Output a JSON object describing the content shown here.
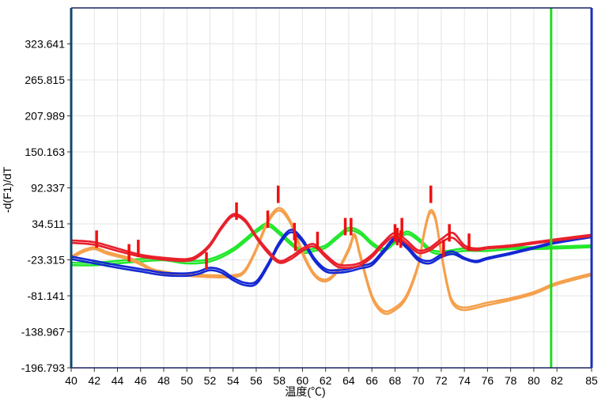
{
  "chart_data": {
    "type": "line",
    "xlabel": "温度(℃)",
    "ylabel": "-d(F1)/dT",
    "xlim": [
      40,
      85
    ],
    "ylim": [
      -196.793,
      381.467
    ],
    "x_ticks": [
      40,
      42,
      44,
      46,
      48,
      50,
      52,
      54,
      56,
      58,
      60,
      62,
      64,
      66,
      68,
      70,
      72,
      74,
      76,
      78,
      80,
      82,
      85
    ],
    "x_tick_labels": [
      "40",
      "42",
      "44",
      "46",
      "48",
      "50",
      "52",
      "54",
      "56",
      "58",
      "60",
      "62",
      "64",
      "66",
      "68",
      "70",
      "72",
      "74",
      "76",
      "78",
      "80",
      "82",
      "85"
    ],
    "y_ticks": [
      323.641,
      265.815,
      207.989,
      150.163,
      92.337,
      34.511,
      -23.315,
      -81.141,
      -138.967,
      -196.793
    ],
    "y_tick_labels": [
      "323.641",
      "265.815",
      "207.989",
      "150.163",
      "92.337",
      "34.511",
      "-23.315",
      "-81.141",
      "-138.967",
      "-196.793"
    ],
    "grid": true,
    "threshold_x": 81.5,
    "colors": {
      "red": "#e8202c",
      "green": "#22e82c",
      "blue": "#1428d2",
      "orange": "#f5a04c",
      "marker": "#ee1111",
      "vline": "#22dd22",
      "frame": "#1a2fb8",
      "grid": "#e4e4e4"
    },
    "series": [
      {
        "color": "#e8202c",
        "x": [
          40,
          42,
          44,
          46,
          48,
          50,
          51,
          52,
          53,
          54,
          55,
          56,
          57,
          58,
          59,
          60,
          61,
          62,
          63,
          64,
          65,
          66,
          67,
          68,
          69,
          70,
          71,
          72,
          73,
          74,
          75,
          76,
          78,
          80,
          82,
          85
        ],
        "y": [
          8,
          5,
          -5,
          -15,
          -20,
          -22,
          -15,
          2,
          30,
          50,
          42,
          15,
          -8,
          -25,
          -18,
          -5,
          2,
          -15,
          -30,
          -32,
          -28,
          -15,
          5,
          20,
          8,
          -8,
          -4,
          10,
          20,
          0,
          -5,
          -3,
          0,
          5,
          10,
          17
        ]
      },
      {
        "color": "#e8202c",
        "x": [
          40,
          42,
          44,
          46,
          48,
          50,
          51,
          52,
          53,
          54,
          55,
          56,
          57,
          58,
          59,
          60,
          61,
          62,
          63,
          64,
          65,
          66,
          67,
          68,
          69,
          70,
          71,
          72,
          73,
          74,
          75,
          76,
          78,
          80,
          82,
          85
        ],
        "y": [
          4,
          1,
          -9,
          -18,
          -23,
          -25,
          -18,
          -1,
          27,
          47,
          39,
          12,
          -12,
          -28,
          -22,
          -9,
          -2,
          -19,
          -34,
          -36,
          -32,
          -19,
          1,
          15,
          3,
          -12,
          -8,
          5,
          12,
          -4,
          -8,
          -5,
          -2,
          3,
          8,
          15
        ]
      },
      {
        "color": "#22e82c",
        "x": [
          40,
          42,
          44,
          46,
          48,
          50,
          52,
          54,
          56,
          57,
          58,
          59,
          60,
          61,
          62,
          63,
          64,
          65,
          66,
          67,
          68,
          69,
          70,
          71,
          72,
          74,
          76,
          78,
          80,
          82,
          85
        ],
        "y": [
          -28,
          -28,
          -25,
          -22,
          -20,
          -25,
          -22,
          -5,
          25,
          35,
          22,
          5,
          -8,
          -5,
          0,
          15,
          28,
          22,
          5,
          -5,
          8,
          22,
          12,
          -5,
          -10,
          -5,
          -5,
          -3,
          -3,
          -2,
          0
        ]
      },
      {
        "color": "#22e82c",
        "x": [
          40,
          42,
          44,
          46,
          48,
          50,
          52,
          54,
          56,
          57,
          58,
          59,
          60,
          61,
          62,
          63,
          64,
          65,
          66,
          67,
          68,
          69,
          70,
          71,
          72,
          74,
          76,
          78,
          80,
          82,
          85
        ],
        "y": [
          -32,
          -32,
          -29,
          -26,
          -24,
          -29,
          -26,
          -9,
          21,
          31,
          18,
          1,
          -12,
          -9,
          -4,
          11,
          24,
          18,
          1,
          -9,
          4,
          18,
          8,
          -9,
          -14,
          -9,
          -9,
          -6,
          -6,
          -5,
          -3
        ]
      },
      {
        "color": "#1428d2",
        "x": [
          40,
          42,
          44,
          46,
          48,
          50,
          51,
          52,
          53,
          54,
          55,
          56,
          57,
          58,
          59,
          60,
          61,
          62,
          63,
          64,
          65,
          66,
          67,
          68,
          69,
          70,
          71,
          72,
          73,
          74,
          75,
          76,
          78,
          80,
          82,
          85
        ],
        "y": [
          -18,
          -25,
          -32,
          -38,
          -44,
          -45,
          -42,
          -36,
          -40,
          -52,
          -60,
          -58,
          -30,
          5,
          25,
          10,
          -20,
          -38,
          -40,
          -38,
          -33,
          -28,
          -8,
          12,
          0,
          -20,
          -25,
          -15,
          -10,
          -20,
          -25,
          -20,
          -12,
          -3,
          6,
          15
        ]
      },
      {
        "color": "#1428d2",
        "x": [
          40,
          42,
          44,
          46,
          48,
          50,
          51,
          52,
          53,
          54,
          55,
          56,
          57,
          58,
          59,
          60,
          61,
          62,
          63,
          64,
          65,
          66,
          67,
          68,
          69,
          70,
          71,
          72,
          73,
          74,
          75,
          76,
          78,
          80,
          82,
          85
        ],
        "y": [
          -22,
          -29,
          -36,
          -42,
          -48,
          -49,
          -46,
          -40,
          -44,
          -56,
          -64,
          -62,
          -34,
          1,
          21,
          6,
          -24,
          -42,
          -44,
          -42,
          -37,
          -32,
          -12,
          8,
          -4,
          -24,
          -29,
          -19,
          -14,
          -22,
          -27,
          -22,
          -14,
          -5,
          4,
          13
        ]
      },
      {
        "color": "#f5a04c",
        "x": [
          40,
          41,
          42,
          43,
          44,
          45,
          46,
          47,
          48,
          49,
          50,
          52,
          54,
          55,
          56,
          57,
          58,
          59,
          60,
          61,
          62,
          63,
          64,
          64.5,
          65,
          66,
          67,
          68,
          69,
          70,
          70.5,
          71,
          71.5,
          72,
          72.5,
          73,
          74,
          76,
          78,
          80,
          82,
          85
        ],
        "y": [
          -18,
          -8,
          -3,
          -10,
          -15,
          -20,
          -28,
          -38,
          -42,
          -45,
          -46,
          -48,
          -48,
          -40,
          -5,
          40,
          60,
          38,
          -10,
          -45,
          -55,
          -40,
          -5,
          18,
          -15,
          -80,
          -105,
          -100,
          -80,
          -30,
          20,
          55,
          45,
          -10,
          -60,
          -90,
          -100,
          -92,
          -85,
          -75,
          -60,
          -45
        ]
      },
      {
        "color": "#f5a04c",
        "x": [
          40,
          41,
          42,
          43,
          44,
          45,
          46,
          47,
          48,
          49,
          50,
          52,
          54,
          55,
          56,
          57,
          58,
          59,
          60,
          61,
          62,
          63,
          64,
          64.5,
          65,
          66,
          67,
          68,
          69,
          70,
          70.5,
          71,
          71.5,
          72,
          72.5,
          73,
          74,
          76,
          78,
          80,
          82,
          85
        ],
        "y": [
          -21,
          -11,
          -6,
          -13,
          -18,
          -23,
          -31,
          -41,
          -45,
          -48,
          -49,
          -51,
          -51,
          -43,
          -8,
          36,
          56,
          34,
          -14,
          -48,
          -58,
          -43,
          -9,
          14,
          -19,
          -84,
          -109,
          -104,
          -84,
          -34,
          16,
          51,
          41,
          -14,
          -64,
          -94,
          -104,
          -96,
          -88,
          -78,
          -63,
          -48
        ]
      }
    ],
    "markers": [
      {
        "x": 42.2,
        "y": 10
      },
      {
        "x": 45,
        "y": -12
      },
      {
        "x": 45.8,
        "y": -5
      },
      {
        "x": 51.7,
        "y": -25
      },
      {
        "x": 54.3,
        "y": 55
      },
      {
        "x": 57,
        "y": 42
      },
      {
        "x": 57.9,
        "y": 82
      },
      {
        "x": 59.3,
        "y": 22
      },
      {
        "x": 59.4,
        "y": 5
      },
      {
        "x": 61.3,
        "y": 8
      },
      {
        "x": 63.7,
        "y": 30
      },
      {
        "x": 64.2,
        "y": 30
      },
      {
        "x": 68,
        "y": 20
      },
      {
        "x": 68.2,
        "y": 14
      },
      {
        "x": 68.5,
        "y": 10
      },
      {
        "x": 68.6,
        "y": 30
      },
      {
        "x": 71.1,
        "y": 82
      },
      {
        "x": 72.2,
        "y": -5
      },
      {
        "x": 72.7,
        "y": 20
      },
      {
        "x": 74.4,
        "y": 5
      }
    ]
  }
}
